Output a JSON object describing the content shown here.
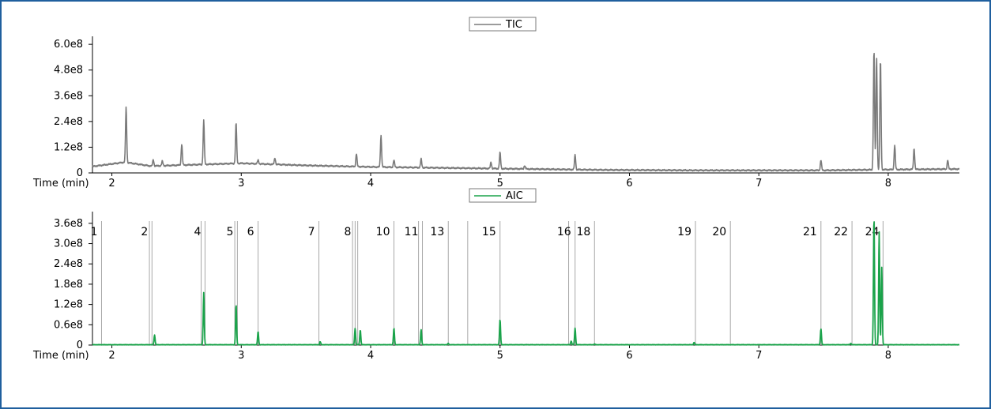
{
  "chart_data": [
    {
      "type": "line",
      "title": "",
      "xlabel": "Time (min)",
      "ylabel": "",
      "xlim": [
        1.85,
        8.55
      ],
      "ylim": [
        0,
        630000000.0
      ],
      "x_ticks": [
        2,
        3,
        4,
        5,
        6,
        7,
        8
      ],
      "x_tick_labels": [
        "2",
        "3",
        "4",
        "5",
        "6",
        "7",
        "8"
      ],
      "y_ticks": [
        0,
        120000000.0,
        240000000.0,
        360000000.0,
        480000000.0,
        600000000.0
      ],
      "y_tick_labels": [
        "0",
        "1.2e8",
        "2.4e8",
        "3.6e8",
        "4.8e8",
        "6.0e8"
      ],
      "grid": false,
      "legend": {
        "position": "top-center",
        "entries": [
          "TIC"
        ]
      },
      "series": [
        {
          "name": "TIC",
          "color": "#7a7a7a",
          "baseline": [
            [
              1.85,
              30000000.0
            ],
            [
              2.1,
              50000000.0
            ],
            [
              2.3,
              32000000.0
            ],
            [
              3.0,
              45000000.0
            ],
            [
              3.5,
              35000000.0
            ],
            [
              4.0,
              28000000.0
            ],
            [
              4.5,
              24000000.0
            ],
            [
              5.0,
              20000000.0
            ],
            [
              5.8,
              14000000.0
            ],
            [
              6.5,
              12000000.0
            ],
            [
              7.5,
              12000000.0
            ],
            [
              7.9,
              15000000.0
            ],
            [
              8.5,
              18000000.0
            ]
          ],
          "peaks": [
            {
              "x": 2.11,
              "y": 305000000.0
            },
            {
              "x": 2.32,
              "y": 62000000.0
            },
            {
              "x": 2.39,
              "y": 55000000.0
            },
            {
              "x": 2.54,
              "y": 135000000.0
            },
            {
              "x": 2.71,
              "y": 245000000.0
            },
            {
              "x": 2.96,
              "y": 235000000.0
            },
            {
              "x": 3.13,
              "y": 60000000.0
            },
            {
              "x": 3.26,
              "y": 70000000.0
            },
            {
              "x": 3.89,
              "y": 90000000.0
            },
            {
              "x": 4.08,
              "y": 175000000.0
            },
            {
              "x": 4.18,
              "y": 60000000.0
            },
            {
              "x": 4.39,
              "y": 65000000.0
            },
            {
              "x": 4.93,
              "y": 50000000.0
            },
            {
              "x": 5.0,
              "y": 95000000.0
            },
            {
              "x": 5.19,
              "y": 35000000.0
            },
            {
              "x": 5.58,
              "y": 85000000.0
            },
            {
              "x": 7.48,
              "y": 60000000.0
            },
            {
              "x": 7.89,
              "y": 575000000.0
            },
            {
              "x": 7.91,
              "y": 540000000.0
            },
            {
              "x": 7.94,
              "y": 530000000.0
            },
            {
              "x": 8.05,
              "y": 130000000.0
            },
            {
              "x": 8.2,
              "y": 115000000.0
            },
            {
              "x": 8.46,
              "y": 60000000.0
            }
          ]
        }
      ]
    },
    {
      "type": "line",
      "title": "",
      "xlabel": "Time (min)",
      "ylabel": "",
      "xlim": [
        1.85,
        8.55
      ],
      "ylim": [
        0,
        390000000.0
      ],
      "x_ticks": [
        2,
        3,
        4,
        5,
        6,
        7,
        8
      ],
      "x_tick_labels": [
        "2",
        "3",
        "4",
        "5",
        "6",
        "7",
        "8"
      ],
      "y_ticks": [
        0,
        60000000.0,
        120000000.0,
        180000000.0,
        240000000.0,
        300000000.0,
        360000000.0
      ],
      "y_tick_labels": [
        "0",
        "0.6e8",
        "1.2e8",
        "1.8e8",
        "2.4e8",
        "3.0e8",
        "3.6e8"
      ],
      "grid": false,
      "legend": {
        "position": "top-center",
        "entries": [
          "AIC"
        ]
      },
      "series": [
        {
          "name": "AIC",
          "color": "#1aa34a",
          "baseline": [
            [
              1.85,
              1000000.0
            ],
            [
              8.55,
              1000000.0
            ]
          ],
          "peaks": [
            {
              "x": 2.33,
              "y": 30000000.0
            },
            {
              "x": 2.71,
              "y": 155000000.0
            },
            {
              "x": 2.96,
              "y": 120000000.0
            },
            {
              "x": 3.13,
              "y": 40000000.0
            },
            {
              "x": 3.61,
              "y": 10000000.0
            },
            {
              "x": 3.88,
              "y": 50000000.0
            },
            {
              "x": 3.92,
              "y": 45000000.0
            },
            {
              "x": 4.18,
              "y": 50000000.0
            },
            {
              "x": 4.39,
              "y": 45000000.0
            },
            {
              "x": 4.6,
              "y": 5000000.0
            },
            {
              "x": 5.0,
              "y": 75000000.0
            },
            {
              "x": 5.55,
              "y": 12000000.0
            },
            {
              "x": 5.58,
              "y": 50000000.0
            },
            {
              "x": 5.73,
              "y": 3000000.0
            },
            {
              "x": 6.5,
              "y": 8000000.0
            },
            {
              "x": 7.48,
              "y": 48000000.0
            },
            {
              "x": 7.71,
              "y": 5000000.0
            },
            {
              "x": 7.89,
              "y": 380000000.0
            },
            {
              "x": 7.93,
              "y": 335000000.0
            },
            {
              "x": 7.95,
              "y": 230000000.0
            }
          ]
        }
      ],
      "markers": [
        {
          "label": "1",
          "x": 1.92
        },
        {
          "label": "",
          "x": 2.29
        },
        {
          "label": "2",
          "x": 2.31
        },
        {
          "label": "",
          "x": 2.69
        },
        {
          "label": "4",
          "x": 2.72
        },
        {
          "label": "",
          "x": 2.95
        },
        {
          "label": "5",
          "x": 2.97
        },
        {
          "label": "6",
          "x": 3.13
        },
        {
          "label": "7",
          "x": 3.6
        },
        {
          "label": "",
          "x": 3.86
        },
        {
          "label": "8",
          "x": 3.88
        },
        {
          "label": "",
          "x": 3.9
        },
        {
          "label": "10",
          "x": 4.18
        },
        {
          "label": "",
          "x": 4.37
        },
        {
          "label": "11",
          "x": 4.4
        },
        {
          "label": "13",
          "x": 4.6
        },
        {
          "label": "",
          "x": 4.75
        },
        {
          "label": "15",
          "x": 5.0
        },
        {
          "label": "",
          "x": 5.53
        },
        {
          "label": "16",
          "x": 5.58
        },
        {
          "label": "18",
          "x": 5.73
        },
        {
          "label": "19",
          "x": 6.51
        },
        {
          "label": "20",
          "x": 6.78
        },
        {
          "label": "21",
          "x": 7.48
        },
        {
          "label": "22",
          "x": 7.72
        },
        {
          "label": "24",
          "x": 7.96
        }
      ]
    }
  ]
}
